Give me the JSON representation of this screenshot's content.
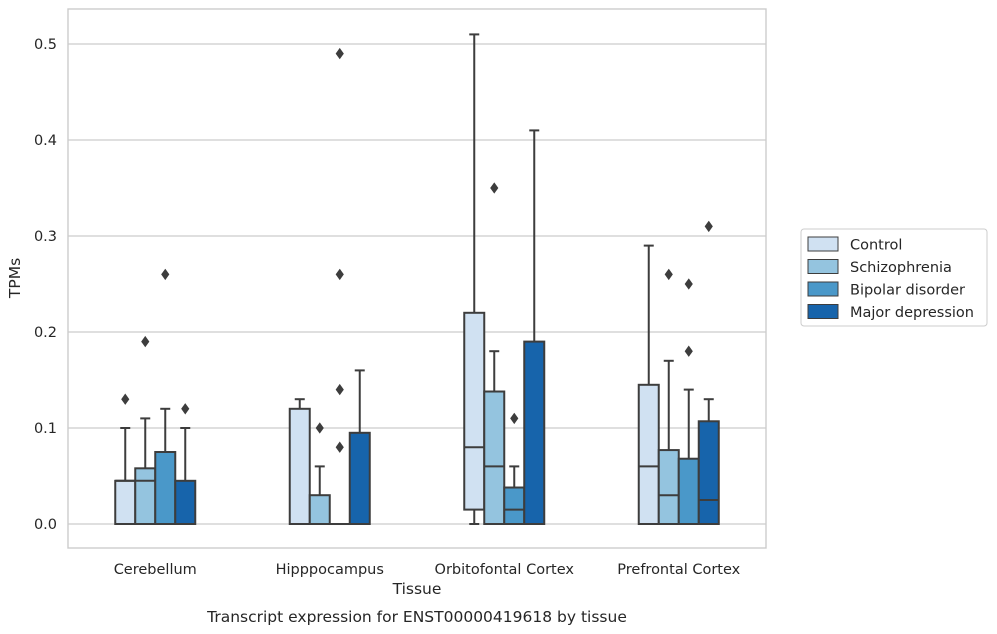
{
  "chart_data": {
    "type": "box",
    "title": "",
    "caption": "Transcript expression for ENST00000419618 by tissue",
    "xlabel": "Tissue",
    "ylabel": "TPMs",
    "ylim": [
      -0.025,
      0.537
    ],
    "yticks": [
      0.0,
      0.1,
      0.2,
      0.3,
      0.4,
      0.5
    ],
    "ytick_labels": [
      "0.0",
      "0.1",
      "0.2",
      "0.3",
      "0.4",
      "0.5"
    ],
    "grid": true,
    "legend_position": "right",
    "categories": [
      "Cerebellum",
      "Hipppocampus",
      "Orbitofontal Cortex",
      "Prefrontal Cortex"
    ],
    "series": [
      {
        "name": "Control",
        "color": "#d0e1f2",
        "boxes": [
          {
            "q1": 0.0,
            "median": 0.045,
            "q3": 0.045,
            "whisker_low": 0.0,
            "whisker_high": 0.1,
            "outliers": [
              0.13
            ]
          },
          {
            "q1": 0.0,
            "median": 0.0,
            "q3": 0.12,
            "whisker_low": 0.0,
            "whisker_high": 0.13,
            "outliers": []
          },
          {
            "q1": 0.015,
            "median": 0.08,
            "q3": 0.22,
            "whisker_low": 0.0,
            "whisker_high": 0.51,
            "outliers": []
          },
          {
            "q1": 0.0,
            "median": 0.06,
            "q3": 0.145,
            "whisker_low": 0.0,
            "whisker_high": 0.29,
            "outliers": []
          }
        ]
      },
      {
        "name": "Schizophrenia",
        "color": "#94c4df",
        "boxes": [
          {
            "q1": 0.0,
            "median": 0.045,
            "q3": 0.058,
            "whisker_low": 0.0,
            "whisker_high": 0.11,
            "outliers": [
              0.19
            ]
          },
          {
            "q1": 0.0,
            "median": 0.0,
            "q3": 0.03,
            "whisker_low": 0.0,
            "whisker_high": 0.06,
            "outliers": [
              0.1
            ]
          },
          {
            "q1": 0.0,
            "median": 0.06,
            "q3": 0.138,
            "whisker_low": 0.0,
            "whisker_high": 0.18,
            "outliers": [
              0.35
            ]
          },
          {
            "q1": 0.0,
            "median": 0.03,
            "q3": 0.077,
            "whisker_low": 0.0,
            "whisker_high": 0.17,
            "outliers": [
              0.26
            ]
          }
        ]
      },
      {
        "name": "Bipolar disorder",
        "color": "#4a98c9",
        "boxes": [
          {
            "q1": 0.0,
            "median": 0.0,
            "q3": 0.075,
            "whisker_low": 0.0,
            "whisker_high": 0.12,
            "outliers": [
              0.26
            ]
          },
          {
            "q1": 0.0,
            "median": 0.0,
            "q3": 0.0,
            "whisker_low": 0.0,
            "whisker_high": 0.0,
            "outliers": [
              0.08,
              0.14,
              0.26,
              0.49
            ]
          },
          {
            "q1": 0.0,
            "median": 0.015,
            "q3": 0.038,
            "whisker_low": 0.0,
            "whisker_high": 0.06,
            "outliers": [
              0.11
            ]
          },
          {
            "q1": 0.0,
            "median": 0.0,
            "q3": 0.068,
            "whisker_low": 0.0,
            "whisker_high": 0.14,
            "outliers": [
              0.18,
              0.25
            ]
          }
        ]
      },
      {
        "name": "Major depression",
        "color": "#1764ab",
        "boxes": [
          {
            "q1": 0.0,
            "median": 0.0,
            "q3": 0.045,
            "whisker_low": 0.0,
            "whisker_high": 0.1,
            "outliers": [
              0.12
            ]
          },
          {
            "q1": 0.0,
            "median": 0.0,
            "q3": 0.095,
            "whisker_low": 0.0,
            "whisker_high": 0.16,
            "outliers": []
          },
          {
            "q1": 0.0,
            "median": 0.0,
            "q3": 0.19,
            "whisker_low": 0.0,
            "whisker_high": 0.41,
            "outliers": []
          },
          {
            "q1": 0.0,
            "median": 0.025,
            "q3": 0.107,
            "whisker_low": 0.0,
            "whisker_high": 0.13,
            "outliers": [
              0.31
            ]
          }
        ]
      }
    ]
  }
}
